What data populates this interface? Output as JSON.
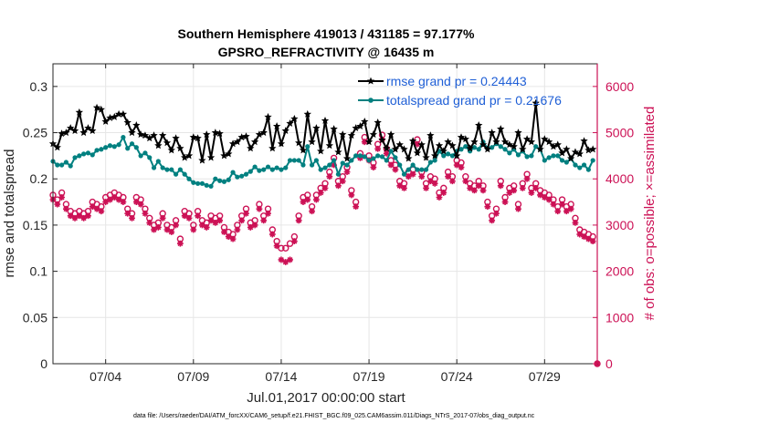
{
  "chart_data": {
    "type": "line",
    "title": "Southern Hemisphere 419013 / 431185 = 97.177%",
    "subtitle": "GPSRO_REFRACTIVITY @ 16435 m",
    "xlabel": "Jul.01,2017 00:00:00 start",
    "ylabel": "rmse and totalspread",
    "y2label": "# of obs: o=possible; ×=assimilated",
    "footnote": "data file: /Users/raeder/DAI/ATM_forcXX/CAM6_setup/f.e21.FHIST_BGC.f09_025.CAM6assim.011/Diags_NTrS_2017-07/obs_diag_output.nc",
    "xlim": [
      0.5,
      31.5
    ],
    "ylim": [
      0,
      0.3245
    ],
    "y2lim": [
      0,
      6490
    ],
    "x_ticks": [
      3.5,
      8.5,
      13.5,
      18.5,
      23.5,
      28.5
    ],
    "x_tick_labels": [
      "07/04",
      "07/09",
      "07/14",
      "07/19",
      "07/24",
      "07/29"
    ],
    "y_ticks": [
      0,
      0.05,
      0.1,
      0.15,
      0.2,
      0.25,
      0.3
    ],
    "y_tick_labels": [
      "0",
      "0.05",
      "0.1",
      "0.15",
      "0.2",
      "0.25",
      "0.3"
    ],
    "y2_ticks": [
      0,
      1000,
      2000,
      3000,
      4000,
      5000,
      6000
    ],
    "y2_tick_labels": [
      "0",
      "1000",
      "2000",
      "3000",
      "4000",
      "5000",
      "6000"
    ],
    "grid": true,
    "legend_position": "top-right",
    "colors": {
      "rmse": "#000000",
      "spread": "#008080",
      "obs": "#cc1155",
      "legend_text": "#1f5fd6",
      "grid": "#e6e6e6"
    },
    "series": [
      {
        "name": "rmse grand pr = 0.24443",
        "color": "#000000",
        "x": [
          0.5,
          0.75,
          1.0,
          1.25,
          1.5,
          1.75,
          2.0,
          2.25,
          2.5,
          2.75,
          3.0,
          3.25,
          3.5,
          3.75,
          4.0,
          4.25,
          4.5,
          4.75,
          5.0,
          5.25,
          5.5,
          5.75,
          6.0,
          6.25,
          6.5,
          6.75,
          7.0,
          7.25,
          7.5,
          7.75,
          8.0,
          8.25,
          8.5,
          8.75,
          9.0,
          9.25,
          9.5,
          9.75,
          10.0,
          10.25,
          10.5,
          10.75,
          11.0,
          11.25,
          11.5,
          11.75,
          12.0,
          12.25,
          12.5,
          12.75,
          13.0,
          13.25,
          13.5,
          13.75,
          14.0,
          14.25,
          14.5,
          14.75,
          15.0,
          15.25,
          15.5,
          15.75,
          16.0,
          16.25,
          16.5,
          16.75,
          17.0,
          17.25,
          17.5,
          17.75,
          18.0,
          18.25,
          18.5,
          18.75,
          19.0,
          19.25,
          19.5,
          19.75,
          20.0,
          20.25,
          20.5,
          20.75,
          21.0,
          21.25,
          21.5,
          21.75,
          22.0,
          22.25,
          22.5,
          22.75,
          23.0,
          23.25,
          23.5,
          23.75,
          24.0,
          24.25,
          24.5,
          24.75,
          25.0,
          25.25,
          25.5,
          25.75,
          26.0,
          26.25,
          26.5,
          26.75,
          27.0,
          27.25,
          27.5,
          27.75,
          28.0,
          28.25,
          28.5,
          28.75,
          29.0,
          29.25,
          29.5,
          29.75,
          30.0,
          30.25,
          30.5,
          30.75,
          31.0,
          31.25
        ],
        "values": [
          0.238,
          0.234,
          0.249,
          0.25,
          0.255,
          0.252,
          0.272,
          0.25,
          0.255,
          0.252,
          0.277,
          0.275,
          0.262,
          0.266,
          0.267,
          0.27,
          0.27,
          0.261,
          0.25,
          0.258,
          0.248,
          0.247,
          0.244,
          0.247,
          0.236,
          0.247,
          0.239,
          0.231,
          0.244,
          0.233,
          0.223,
          0.225,
          0.245,
          0.244,
          0.22,
          0.248,
          0.223,
          0.25,
          0.249,
          0.225,
          0.227,
          0.238,
          0.24,
          0.245,
          0.246,
          0.233,
          0.24,
          0.248,
          0.25,
          0.267,
          0.233,
          0.257,
          0.238,
          0.252,
          0.26,
          0.265,
          0.239,
          0.231,
          0.27,
          0.24,
          0.255,
          0.23,
          0.263,
          0.236,
          0.254,
          0.229,
          0.248,
          0.222,
          0.247,
          0.255,
          0.257,
          0.262,
          0.24,
          0.248,
          0.261,
          0.242,
          0.233,
          0.248,
          0.232,
          0.237,
          0.232,
          0.222,
          0.241,
          0.228,
          0.237,
          0.223,
          0.247,
          0.225,
          0.236,
          0.23,
          0.24,
          0.236,
          0.225,
          0.245,
          0.243,
          0.233,
          0.24,
          0.258,
          0.237,
          0.232,
          0.25,
          0.24,
          0.254,
          0.24,
          0.237,
          0.235,
          0.25,
          0.232,
          0.243,
          0.24,
          0.282,
          0.232,
          0.243,
          0.24,
          0.235,
          0.237,
          0.228,
          0.232,
          0.222,
          0.229,
          0.227,
          0.241,
          0.231,
          0.232
        ]
      },
      {
        "name": "totalspread grand pr = 0.21676",
        "color": "#008080",
        "x": [
          0.5,
          0.75,
          1.0,
          1.25,
          1.5,
          1.75,
          2.0,
          2.25,
          2.5,
          2.75,
          3.0,
          3.25,
          3.5,
          3.75,
          4.0,
          4.25,
          4.5,
          4.75,
          5.0,
          5.25,
          5.5,
          5.75,
          6.0,
          6.25,
          6.5,
          6.75,
          7.0,
          7.25,
          7.5,
          7.75,
          8.0,
          8.25,
          8.5,
          8.75,
          9.0,
          9.25,
          9.5,
          9.75,
          10.0,
          10.25,
          10.5,
          10.75,
          11.0,
          11.25,
          11.5,
          11.75,
          12.0,
          12.25,
          12.5,
          12.75,
          13.0,
          13.25,
          13.5,
          13.75,
          14.0,
          14.25,
          14.5,
          14.75,
          15.0,
          15.25,
          15.5,
          15.75,
          16.0,
          16.25,
          16.5,
          16.75,
          17.0,
          17.25,
          17.5,
          17.75,
          18.0,
          18.25,
          18.5,
          18.75,
          19.0,
          19.25,
          19.5,
          19.75,
          20.0,
          20.25,
          20.5,
          20.75,
          21.0,
          21.25,
          21.5,
          21.75,
          22.0,
          22.25,
          22.5,
          22.75,
          23.0,
          23.25,
          23.5,
          23.75,
          24.0,
          24.25,
          24.5,
          24.75,
          25.0,
          25.25,
          25.5,
          25.75,
          26.0,
          26.25,
          26.5,
          26.75,
          27.0,
          27.25,
          27.5,
          27.75,
          28.0,
          28.25,
          28.5,
          28.75,
          29.0,
          29.25,
          29.5,
          29.75,
          30.0,
          30.25,
          30.5,
          30.75,
          31.0,
          31.25
        ],
        "values": [
          0.219,
          0.215,
          0.215,
          0.218,
          0.214,
          0.223,
          0.225,
          0.227,
          0.228,
          0.226,
          0.231,
          0.232,
          0.234,
          0.236,
          0.235,
          0.237,
          0.245,
          0.233,
          0.238,
          0.234,
          0.225,
          0.228,
          0.223,
          0.212,
          0.219,
          0.212,
          0.21,
          0.21,
          0.205,
          0.21,
          0.205,
          0.2,
          0.196,
          0.195,
          0.195,
          0.193,
          0.192,
          0.2,
          0.198,
          0.197,
          0.199,
          0.207,
          0.202,
          0.203,
          0.205,
          0.208,
          0.213,
          0.209,
          0.21,
          0.213,
          0.21,
          0.212,
          0.21,
          0.212,
          0.22,
          0.22,
          0.22,
          0.215,
          0.235,
          0.215,
          0.22,
          0.21,
          0.212,
          0.215,
          0.22,
          0.205,
          0.217,
          0.215,
          0.22,
          0.225,
          0.225,
          0.224,
          0.22,
          0.222,
          0.225,
          0.224,
          0.22,
          0.23,
          0.223,
          0.215,
          0.205,
          0.21,
          0.215,
          0.21,
          0.21,
          0.21,
          0.218,
          0.22,
          0.23,
          0.225,
          0.227,
          0.225,
          0.23,
          0.232,
          0.235,
          0.23,
          0.234,
          0.232,
          0.24,
          0.233,
          0.234,
          0.238,
          0.235,
          0.232,
          0.228,
          0.232,
          0.226,
          0.23,
          0.224,
          0.225,
          0.235,
          0.232,
          0.22,
          0.223,
          0.225,
          0.225,
          0.22,
          0.218,
          0.222,
          0.215,
          0.212,
          0.215,
          0.21,
          0.22
        ]
      },
      {
        "name": "possible",
        "color": "#cc1155",
        "x": [
          0.5,
          0.75,
          1.0,
          1.25,
          1.5,
          1.75,
          2.0,
          2.25,
          2.5,
          2.75,
          3.0,
          3.25,
          3.5,
          3.75,
          4.0,
          4.25,
          4.5,
          4.75,
          5.0,
          5.25,
          5.5,
          5.75,
          6.0,
          6.25,
          6.5,
          6.75,
          7.0,
          7.25,
          7.5,
          7.75,
          8.0,
          8.25,
          8.5,
          8.75,
          9.0,
          9.25,
          9.5,
          9.75,
          10.0,
          10.25,
          10.5,
          10.75,
          11.0,
          11.25,
          11.5,
          11.75,
          12.0,
          12.25,
          12.5,
          12.75,
          13.0,
          13.25,
          13.5,
          13.75,
          14.0,
          14.25,
          14.5,
          14.75,
          15.0,
          15.25,
          15.5,
          15.75,
          16.0,
          16.25,
          16.5,
          16.75,
          17.0,
          17.25,
          17.5,
          17.75,
          18.0,
          18.25,
          18.5,
          18.75,
          19.0,
          19.25,
          19.5,
          19.75,
          20.0,
          20.25,
          20.5,
          20.75,
          21.0,
          21.25,
          21.5,
          21.75,
          22.0,
          22.25,
          22.5,
          22.75,
          23.0,
          23.25,
          23.5,
          23.75,
          24.0,
          24.25,
          24.5,
          24.75,
          25.0,
          25.25,
          25.5,
          25.75,
          26.0,
          26.25,
          26.5,
          26.75,
          27.0,
          27.25,
          27.5,
          27.75,
          28.0,
          28.25,
          28.5,
          28.75,
          29.0,
          29.25,
          29.5,
          29.75,
          30.0,
          30.25,
          30.5,
          30.75,
          31.0,
          31.25
        ],
        "values": [
          3650,
          3550,
          3700,
          3450,
          3300,
          3250,
          3300,
          3250,
          3300,
          3500,
          3450,
          3400,
          3600,
          3650,
          3700,
          3650,
          3600,
          3350,
          3250,
          3600,
          3550,
          3350,
          3150,
          3000,
          3050,
          3250,
          3000,
          2950,
          3100,
          2700,
          3300,
          3250,
          3000,
          3300,
          3100,
          3050,
          3200,
          3150,
          3200,
          2950,
          2850,
          2800,
          3000,
          3200,
          3350,
          3050,
          3100,
          3450,
          3200,
          3350,
          2900,
          2650,
          2500,
          2500,
          2600,
          2750,
          3200,
          3600,
          3650,
          3400,
          3650,
          3800,
          3900,
          4150,
          4450,
          3950,
          4050,
          4250,
          3750,
          3500,
          4550,
          4900,
          4500,
          4350,
          4750,
          4950,
          4650,
          4400,
          4300,
          3950,
          3900,
          4150,
          4200,
          4850,
          4150,
          3900,
          4050,
          4000,
          3700,
          3800,
          4150,
          4050,
          4400,
          4350,
          4050,
          3900,
          3850,
          3950,
          3850,
          3500,
          3200,
          3350,
          3950,
          3600,
          3800,
          3850,
          3450,
          3900,
          4100,
          3800,
          3900,
          3750,
          3700,
          3650,
          3550,
          3400,
          3550,
          3400,
          3450,
          3150,
          2900,
          2850,
          2800,
          2750
        ]
      },
      {
        "name": "assimilated",
        "color": "#cc1155",
        "x": [
          0.5,
          0.75,
          1.0,
          1.25,
          1.5,
          1.75,
          2.0,
          2.25,
          2.5,
          2.75,
          3.0,
          3.25,
          3.5,
          3.75,
          4.0,
          4.25,
          4.5,
          4.75,
          5.0,
          5.25,
          5.5,
          5.75,
          6.0,
          6.25,
          6.5,
          6.75,
          7.0,
          7.25,
          7.5,
          7.75,
          8.0,
          8.25,
          8.5,
          8.75,
          9.0,
          9.25,
          9.5,
          9.75,
          10.0,
          10.25,
          10.5,
          10.75,
          11.0,
          11.25,
          11.5,
          11.75,
          12.0,
          12.25,
          12.5,
          12.75,
          13.0,
          13.25,
          13.5,
          13.75,
          14.0,
          14.25,
          14.5,
          14.75,
          15.0,
          15.25,
          15.5,
          15.75,
          16.0,
          16.25,
          16.5,
          16.75,
          17.0,
          17.25,
          17.5,
          17.75,
          18.0,
          18.25,
          18.5,
          18.75,
          19.0,
          19.25,
          19.5,
          19.75,
          20.0,
          20.25,
          20.5,
          20.75,
          21.0,
          21.25,
          21.5,
          21.75,
          22.0,
          22.25,
          22.5,
          22.75,
          23.0,
          23.25,
          23.5,
          23.75,
          24.0,
          24.25,
          24.5,
          24.75,
          25.0,
          25.25,
          25.5,
          25.75,
          26.0,
          26.25,
          26.5,
          26.75,
          27.0,
          27.25,
          27.5,
          27.75,
          28.0,
          28.25,
          28.5,
          28.75,
          29.0,
          29.25,
          29.5,
          29.75,
          30.0,
          30.25,
          30.5,
          30.75,
          31.0,
          31.25
        ],
        "values": [
          3550,
          3450,
          3600,
          3350,
          3200,
          3150,
          3200,
          3150,
          3200,
          3400,
          3350,
          3300,
          3500,
          3550,
          3600,
          3550,
          3500,
          3250,
          3150,
          3500,
          3450,
          3250,
          3050,
          2900,
          2950,
          3150,
          2900,
          2850,
          3000,
          2600,
          3200,
          3150,
          2900,
          3200,
          3000,
          2950,
          3100,
          3050,
          3100,
          2850,
          2750,
          2700,
          2900,
          3100,
          3250,
          2950,
          3000,
          3350,
          3100,
          3250,
          2800,
          2550,
          2250,
          2200,
          2250,
          2650,
          3100,
          3500,
          3550,
          3300,
          3550,
          3700,
          3800,
          4050,
          4300,
          3850,
          3950,
          4150,
          3650,
          3400,
          4450,
          4800,
          4400,
          4250,
          4650,
          4850,
          4550,
          4300,
          4200,
          3850,
          3800,
          4050,
          4100,
          4750,
          4050,
          3800,
          3950,
          3900,
          3600,
          3700,
          4050,
          3950,
          4300,
          4250,
          3950,
          3800,
          3750,
          3850,
          3750,
          3400,
          3100,
          3250,
          3850,
          3500,
          3700,
          3750,
          3350,
          3800,
          4000,
          3700,
          3800,
          3650,
          3600,
          3550,
          3450,
          3300,
          3450,
          3300,
          3350,
          3050,
          2800,
          2750,
          2700,
          2650
        ]
      }
    ]
  }
}
